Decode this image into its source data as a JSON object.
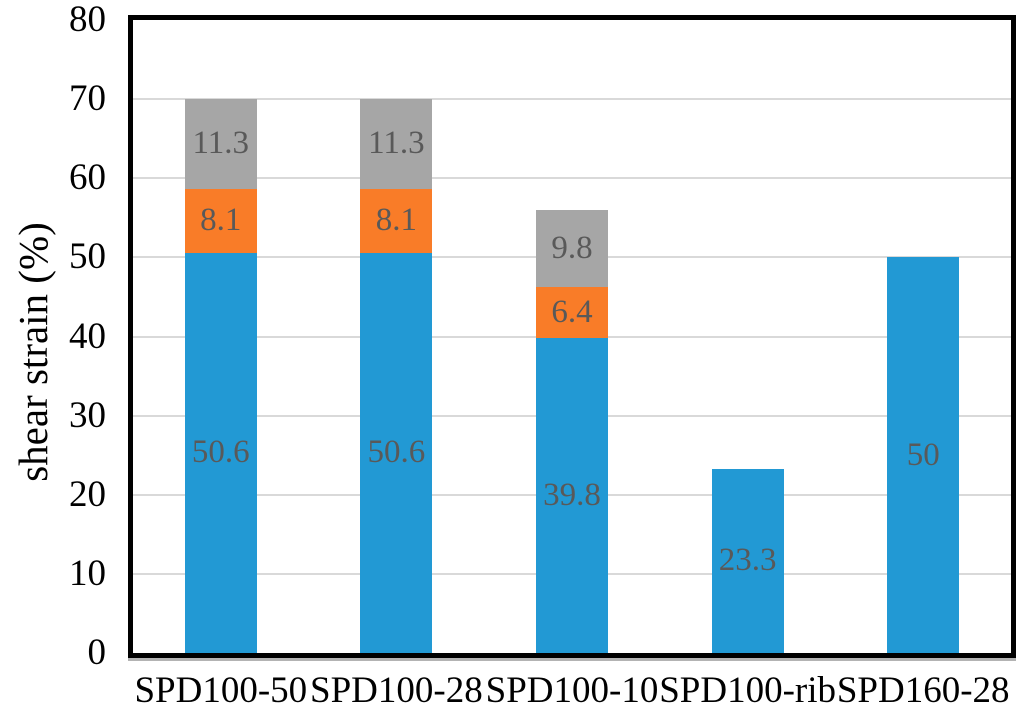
{
  "chart_data": {
    "type": "bar",
    "stacked": true,
    "title": "",
    "xlabel": "",
    "ylabel": "shear strain (%)",
    "ylim": [
      0,
      80
    ],
    "yticks": [
      0,
      10,
      20,
      30,
      40,
      50,
      60,
      70,
      80
    ],
    "grid": true,
    "legend": false,
    "categories": [
      "SPD100-50",
      "SPD100-28",
      "SPD100-10",
      "SPD100-rib",
      "SPD160-28"
    ],
    "series": [
      {
        "name": "blue-segment",
        "color": "#2299D4",
        "values": [
          50.6,
          50.6,
          39.8,
          23.3,
          50
        ],
        "labels": [
          "50.6",
          "50.6",
          "39.8",
          "23.3",
          "50"
        ]
      },
      {
        "name": "orange-segment",
        "color": "#F97C28",
        "values": [
          8.1,
          8.1,
          6.4,
          null,
          null
        ],
        "labels": [
          "8.1",
          "8.1",
          "6.4",
          "",
          ""
        ]
      },
      {
        "name": "gray-segment",
        "color": "#A6A6A6",
        "values": [
          11.3,
          11.3,
          9.8,
          null,
          null
        ],
        "labels": [
          "11.3",
          "11.3",
          "9.8",
          "",
          ""
        ]
      }
    ],
    "colors": {
      "data_label": "#595959",
      "gridline": "#D9D9D9",
      "axis_border": "#000000",
      "tick_label": "#000000",
      "background": "#FFFFFF"
    }
  }
}
